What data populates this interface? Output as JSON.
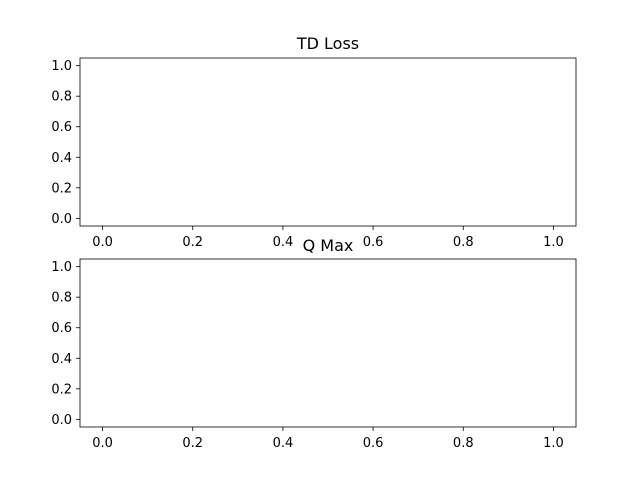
{
  "chart_data": [
    {
      "type": "line",
      "title": "TD Loss",
      "xlabel": "",
      "ylabel": "",
      "xlim": [
        -0.05,
        1.05
      ],
      "ylim": [
        -0.05,
        1.05
      ],
      "x_ticks": [
        0.0,
        0.2,
        0.4,
        0.6,
        0.8,
        1.0
      ],
      "y_ticks": [
        0.0,
        0.2,
        0.4,
        0.6,
        0.8,
        1.0
      ],
      "x_tick_labels": [
        "0.0",
        "0.2",
        "0.4",
        "0.6",
        "0.8",
        "1.0"
      ],
      "y_tick_labels": [
        "0.0",
        "0.2",
        "0.4",
        "0.6",
        "0.8",
        "1.0"
      ],
      "series": [],
      "grid": false
    },
    {
      "type": "line",
      "title": "Q Max",
      "xlabel": "",
      "ylabel": "",
      "xlim": [
        -0.05,
        1.05
      ],
      "ylim": [
        -0.05,
        1.05
      ],
      "x_ticks": [
        0.0,
        0.2,
        0.4,
        0.6,
        0.8,
        1.0
      ],
      "y_ticks": [
        0.0,
        0.2,
        0.4,
        0.6,
        0.8,
        1.0
      ],
      "x_tick_labels": [
        "0.0",
        "0.2",
        "0.4",
        "0.6",
        "0.8",
        "1.0"
      ],
      "y_tick_labels": [
        "0.0",
        "0.2",
        "0.4",
        "0.6",
        "0.8",
        "1.0"
      ],
      "series": [],
      "grid": false
    }
  ],
  "colors": {
    "background": "#ffffff",
    "axes": "#000000",
    "text": "#000000"
  }
}
